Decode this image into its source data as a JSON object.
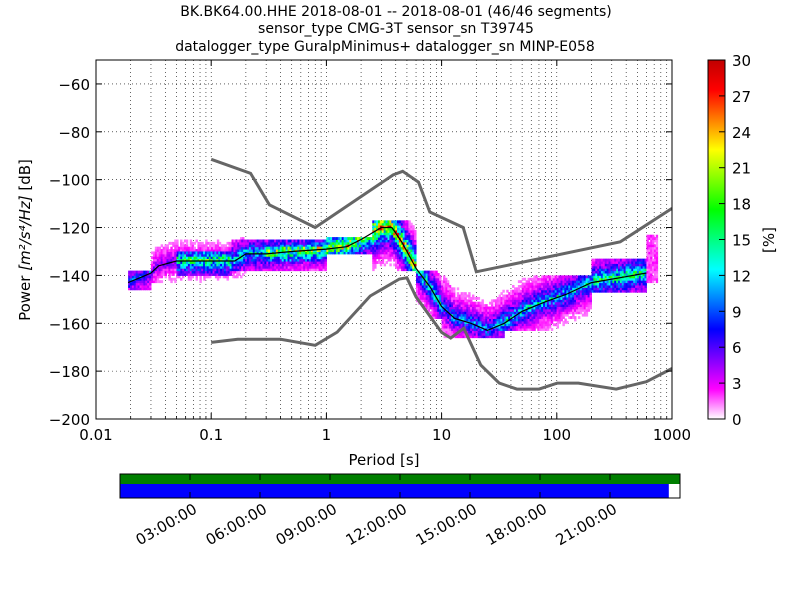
{
  "chart_data": {
    "type": "heatmap",
    "title_lines": [
      "BK.BK64.00.HHE   2018-08-01 -- 2018-08-01  (46/46 segments)",
      "sensor_type CMG-3T sensor_sn T39745",
      "datalogger_type GuralpMinimus+ datalogger_sn MINP-E058"
    ],
    "xlabel": "Period [s]",
    "ylabel_prefix": "Power ",
    "ylabel_math": "[m²/s⁴/Hz]",
    "ylabel_suffix": " [dB]",
    "xscale": "log",
    "xlim": [
      0.01,
      1000
    ],
    "ylim": [
      -200,
      -50
    ],
    "x_tick_labels": [
      "0.01",
      "0.1",
      "1",
      "10",
      "100",
      "1000"
    ],
    "x_tick_values": [
      0.01,
      0.1,
      1,
      10,
      100,
      1000
    ],
    "y_tick_labels": [
      "−60",
      "−80",
      "−100",
      "−120",
      "−140",
      "−160",
      "−180",
      "−200"
    ],
    "y_tick_values": [
      -60,
      -80,
      -100,
      -120,
      -140,
      -160,
      -180,
      -200
    ],
    "grid": "dotted vertical and horizontal",
    "colorbar": {
      "label": "[%]",
      "min": 0,
      "max": 30,
      "tick_labels": [
        "0",
        "3",
        "6",
        "9",
        "12",
        "15",
        "18",
        "21",
        "24",
        "27",
        "30"
      ],
      "tick_values": [
        0,
        3,
        6,
        9,
        12,
        15,
        18,
        21,
        24,
        27,
        30
      ],
      "colormap": [
        "#ffffff",
        "#ff00ff",
        "#8000ff",
        "#0000ff",
        "#0080ff",
        "#00ffff",
        "#00ff80",
        "#00ff00",
        "#80ff00",
        "#ffff00",
        "#ff8000",
        "#ff0000",
        "#c00000"
      ]
    },
    "noise_model_high": [
      [
        0.1,
        -91.5
      ],
      [
        0.22,
        -97.4
      ],
      [
        0.32,
        -110.5
      ],
      [
        0.8,
        -120
      ],
      [
        3.8,
        -98
      ],
      [
        4.6,
        -96.5
      ],
      [
        6.3,
        -101
      ],
      [
        7.9,
        -113.5
      ],
      [
        15.4,
        -120
      ],
      [
        20,
        -138.5
      ],
      [
        354.8,
        -126
      ],
      [
        1000,
        -112
      ]
    ],
    "noise_model_low": [
      [
        0.1,
        -168
      ],
      [
        0.17,
        -166.7
      ],
      [
        0.4,
        -166.7
      ],
      [
        0.8,
        -169.2
      ],
      [
        1.24,
        -163.7
      ],
      [
        2.4,
        -148.6
      ],
      [
        4.3,
        -141.5
      ],
      [
        5,
        -141
      ],
      [
        6,
        -149
      ],
      [
        10,
        -163.8
      ],
      [
        12,
        -166.2
      ],
      [
        15.6,
        -162.1
      ],
      [
        21.9,
        -177.5
      ],
      [
        31.6,
        -185
      ],
      [
        45,
        -187.5
      ],
      [
        70,
        -187.5
      ],
      [
        101,
        -185
      ],
      [
        154,
        -185
      ],
      [
        328,
        -187.5
      ],
      [
        600,
        -184.4
      ],
      [
        1000,
        -178.9
      ]
    ],
    "mode_curve": [
      [
        0.019,
        -143
      ],
      [
        0.024,
        -141
      ],
      [
        0.03,
        -139
      ],
      [
        0.035,
        -136
      ],
      [
        0.05,
        -134
      ],
      [
        0.08,
        -134
      ],
      [
        0.12,
        -134
      ],
      [
        0.16,
        -134
      ],
      [
        0.2,
        -131
      ],
      [
        0.3,
        -131
      ],
      [
        0.5,
        -130
      ],
      [
        1,
        -129
      ],
      [
        1.5,
        -128
      ],
      [
        2,
        -125
      ],
      [
        3,
        -120
      ],
      [
        3.7,
        -120
      ],
      [
        4.5,
        -126
      ],
      [
        6,
        -137
      ],
      [
        8,
        -145
      ],
      [
        10,
        -153
      ],
      [
        13,
        -158
      ],
      [
        18,
        -160
      ],
      [
        25,
        -163
      ],
      [
        35,
        -160
      ],
      [
        50,
        -155
      ],
      [
        80,
        -151
      ],
      [
        120,
        -148
      ],
      [
        200,
        -143
      ],
      [
        350,
        -141
      ],
      [
        600,
        -139
      ]
    ],
    "density_bands": [
      {
        "x": [
          0.019,
          0.03
        ],
        "y": [
          -146,
          -138
        ],
        "pct": 8
      },
      {
        "x": [
          0.03,
          0.2
        ],
        "y": [
          -143,
          -124
        ],
        "pct": 5
      },
      {
        "x": [
          0.05,
          0.15
        ],
        "y": [
          -140,
          -130
        ],
        "pct": 15
      },
      {
        "x": [
          0.15,
          1
        ],
        "y": [
          -138,
          -125
        ],
        "pct": 12
      },
      {
        "x": [
          0.3,
          1
        ],
        "y": [
          -134,
          -128
        ],
        "pct": 18
      },
      {
        "x": [
          1,
          2.5
        ],
        "y": [
          -131,
          -124
        ],
        "pct": 20
      },
      {
        "x": [
          2.5,
          6
        ],
        "y": [
          -138,
          -117
        ],
        "pct": 24
      },
      {
        "x": [
          6,
          12
        ],
        "y": [
          -158,
          -138
        ],
        "pct": 14
      },
      {
        "x": [
          10,
          35
        ],
        "y": [
          -166,
          -145
        ],
        "pct": 10
      },
      {
        "x": [
          30,
          200
        ],
        "y": [
          -163,
          -140
        ],
        "pct": 12
      },
      {
        "x": [
          200,
          600
        ],
        "y": [
          -147,
          -133
        ],
        "pct": 15
      },
      {
        "x": [
          600,
          750
        ],
        "y": [
          -143,
          -123
        ],
        "pct": 4
      }
    ]
  },
  "timeline": {
    "tick_labels": [
      "03:00:00",
      "06:00:00",
      "09:00:00",
      "12:00:00",
      "15:00:00",
      "18:00:00",
      "21:00:00"
    ],
    "tick_hours": [
      3,
      6,
      9,
      12,
      15,
      18,
      21
    ],
    "data_coverage_fraction": 0.98,
    "top_bar_color": "#007f00",
    "bottom_bar_color": "#0000ff"
  }
}
